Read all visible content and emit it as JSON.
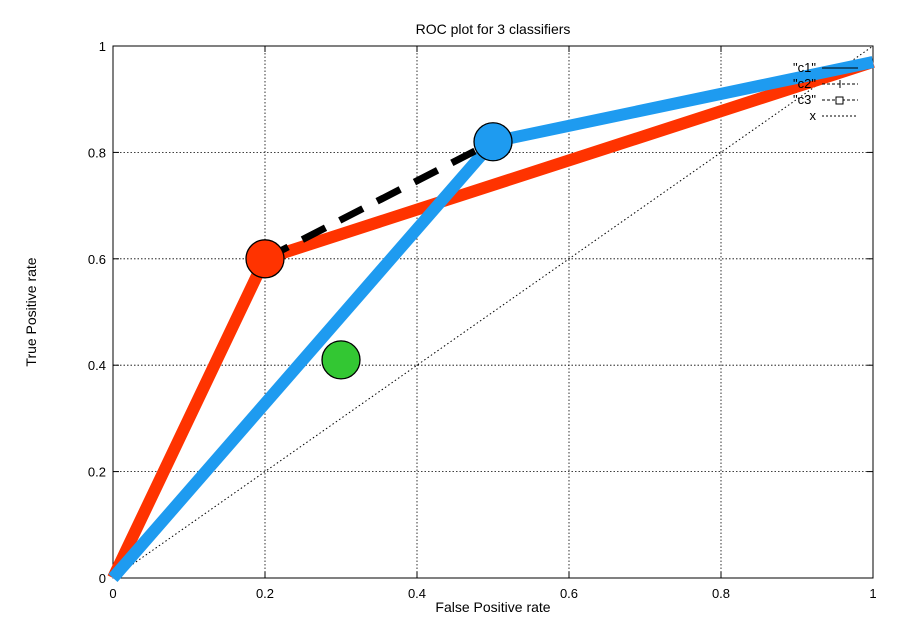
{
  "chart_data": {
    "type": "line",
    "title": "ROC plot for 3 classifiers",
    "xlabel": "False Positive rate",
    "ylabel": "True Positive rate",
    "xlim": [
      0,
      1
    ],
    "ylim": [
      0,
      1
    ],
    "grid": true,
    "legend_placement": "top-right",
    "x_ticks": [
      "0",
      "0.2",
      "0.4",
      "0.6",
      "0.8",
      "1"
    ],
    "y_ticks": [
      "0",
      "0.2",
      "0.4",
      "0.6",
      "0.8",
      "1"
    ],
    "series": [
      {
        "name": "\"c1\"",
        "style": "thick-line",
        "color": "#ff3300",
        "points": [
          [
            0,
            0
          ],
          [
            0.2,
            0.6
          ],
          [
            1,
            0.97
          ]
        ]
      },
      {
        "name": "\"c2\"",
        "style": "thick-line",
        "color": "#1e9bf0",
        "points": [
          [
            0,
            0
          ],
          [
            0.5,
            0.82
          ],
          [
            1,
            0.97
          ]
        ]
      },
      {
        "name": "\"c3\"",
        "style": "point",
        "color": "#33c733",
        "points": [
          [
            0.3,
            0.41
          ]
        ]
      },
      {
        "name": "x",
        "style": "dotted-line",
        "color": "#000000",
        "points": [
          [
            0,
            0
          ],
          [
            1,
            1
          ]
        ]
      }
    ],
    "markers": [
      {
        "x": 0.2,
        "y": 0.6,
        "color": "#ff3300"
      },
      {
        "x": 0.5,
        "y": 0.82,
        "color": "#1e9bf0"
      },
      {
        "x": 0.3,
        "y": 0.41,
        "color": "#33c733"
      }
    ],
    "hull_segment": {
      "color": "#000000",
      "style": "dashed",
      "points": [
        [
          0.2,
          0.6
        ],
        [
          0.5,
          0.82
        ]
      ]
    },
    "legend": [
      {
        "label": "\"c1\"",
        "symbol": "line"
      },
      {
        "label": "\"c2\"",
        "symbol": "plus"
      },
      {
        "label": "\"c3\"",
        "symbol": "square"
      },
      {
        "label": "x",
        "symbol": "dotted"
      }
    ]
  }
}
